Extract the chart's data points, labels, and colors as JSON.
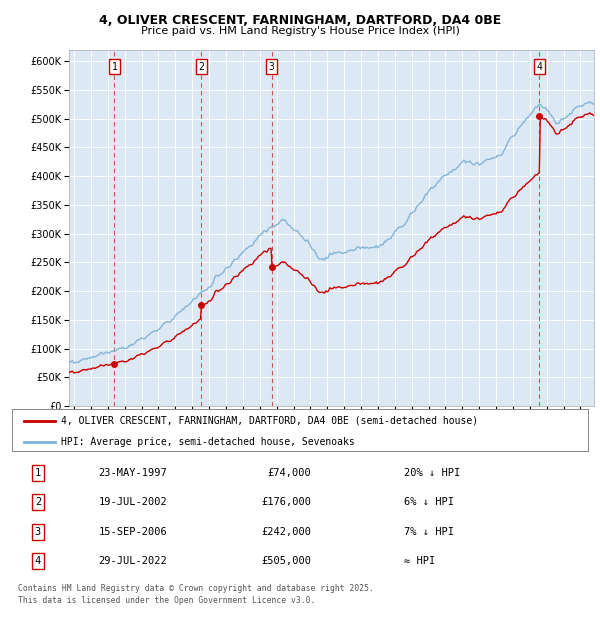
{
  "title1": "4, OLIVER CRESCENT, FARNINGHAM, DARTFORD, DA4 0BE",
  "title2": "Price paid vs. HM Land Registry's House Price Index (HPI)",
  "legend_line1": "4, OLIVER CRESCENT, FARNINGHAM, DARTFORD, DA4 0BE (semi-detached house)",
  "legend_line2": "HPI: Average price, semi-detached house, Sevenoaks",
  "sales": [
    {
      "label": "1",
      "date": "23-MAY-1997",
      "price": 74000,
      "note": "20% ↓ HPI",
      "x": 1997.39
    },
    {
      "label": "2",
      "date": "19-JUL-2002",
      "price": 176000,
      "note": "6% ↓ HPI",
      "x": 2002.54
    },
    {
      "label": "3",
      "date": "15-SEP-2006",
      "price": 242000,
      "note": "7% ↓ HPI",
      "x": 2006.71
    },
    {
      "label": "4",
      "date": "29-JUL-2022",
      "price": 505000,
      "note": "≈ HPI",
      "x": 2022.57
    }
  ],
  "footer1": "Contains HM Land Registry data © Crown copyright and database right 2025.",
  "footer2": "This data is licensed under the Open Government Licence v3.0.",
  "plot_bg": "#dce9f5",
  "red_color": "#cc0000",
  "blue_color": "#7bafd4",
  "grid_color": "#ffffff",
  "ylim_max": 620000,
  "xlim_min": 1994.7,
  "xlim_max": 2025.8
}
